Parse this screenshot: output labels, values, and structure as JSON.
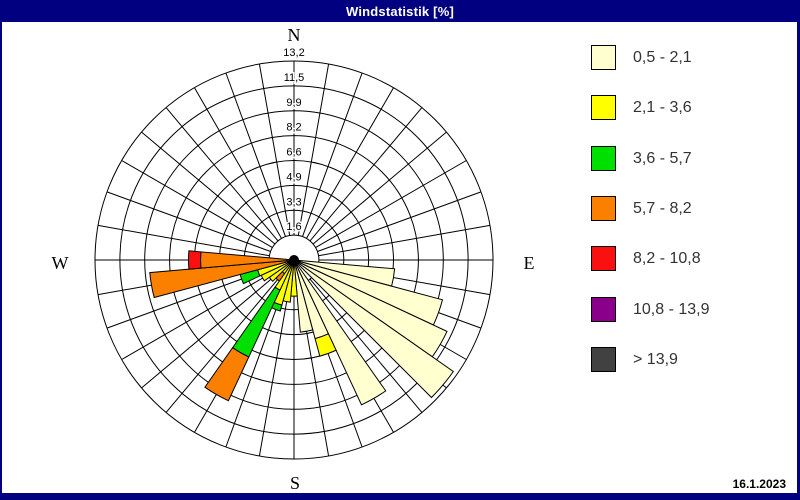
{
  "titlebar": {
    "title": "Windstatistik [%]"
  },
  "compass": {
    "north": "N",
    "east": "E",
    "south": "S",
    "west": "W"
  },
  "footer": {
    "date": "16.1.2023"
  },
  "colors": {
    "frame": "#000080",
    "title_text": "#FFFFFF",
    "grid": "#000000",
    "background": "#FFFFFF"
  },
  "chart_data": {
    "type": "windrose-polar-stacked-bar",
    "title": "Windstatistik [%]",
    "units": "%",
    "grid": {
      "spoke_step_deg": 10,
      "ring_count": 8,
      "ring_step_percent": 1.65,
      "max_percent": 13.2,
      "ring_labels_inner_to_outer": [
        "1,6",
        "3,3",
        "4,9",
        "6,6",
        "8,2",
        "9,9",
        "11,5",
        "13,2"
      ]
    },
    "sector_width_deg": 10,
    "speed_classes": [
      {
        "id": "c1",
        "label": "0,5 - 2,1",
        "color": "#FFFFD0"
      },
      {
        "id": "c2",
        "label": "2,1 - 3,6",
        "color": "#FFFF00"
      },
      {
        "id": "c3",
        "label": "3,6 - 5,7",
        "color": "#00E000"
      },
      {
        "id": "c4",
        "label": "5,7 - 8,2",
        "color": "#FB8000"
      },
      {
        "id": "c5",
        "label": "8,2 - 10,8",
        "color": "#FA1010"
      },
      {
        "id": "c6",
        "label": "10,8 - 13,9",
        "color": "#8B008B"
      },
      {
        "id": "c7",
        "label": "> 13,9",
        "color": "#414141"
      }
    ],
    "directions": [
      {
        "bearing_deg": 100,
        "segments": [
          {
            "class": "c1",
            "from": 0,
            "to": 6.7
          }
        ]
      },
      {
        "bearing_deg": 110,
        "segments": [
          {
            "class": "c1",
            "from": 0,
            "to": 10.2
          }
        ]
      },
      {
        "bearing_deg": 120,
        "segments": [
          {
            "class": "c1",
            "from": 0,
            "to": 11.2
          }
        ]
      },
      {
        "bearing_deg": 130,
        "segments": [
          {
            "class": "c1",
            "from": 0,
            "to": 12.9
          }
        ]
      },
      {
        "bearing_deg": 150,
        "segments": [
          {
            "class": "c1",
            "from": 0,
            "to": 10.6
          }
        ]
      },
      {
        "bearing_deg": 160,
        "segments": [
          {
            "class": "c1",
            "from": 0,
            "to": 5.4
          },
          {
            "class": "c2",
            "from": 5.4,
            "to": 6.6
          }
        ]
      },
      {
        "bearing_deg": 170,
        "segments": [
          {
            "class": "c1",
            "from": 0,
            "to": 4.8
          }
        ]
      },
      {
        "bearing_deg": 180,
        "segments": [
          {
            "class": "c2",
            "from": 0,
            "to": 2.4
          }
        ]
      },
      {
        "bearing_deg": 190,
        "segments": [
          {
            "class": "c2",
            "from": 0,
            "to": 2.8
          }
        ]
      },
      {
        "bearing_deg": 200,
        "segments": [
          {
            "class": "c2",
            "from": 0,
            "to": 3.1
          },
          {
            "class": "c3",
            "from": 3.1,
            "to": 3.5
          }
        ]
      },
      {
        "bearing_deg": 210,
        "segments": [
          {
            "class": "c2",
            "from": 0,
            "to": 2.2
          },
          {
            "class": "c3",
            "from": 2.2,
            "to": 7.1
          },
          {
            "class": "c4",
            "from": 7.1,
            "to": 10.3
          }
        ]
      },
      {
        "bearing_deg": 220,
        "segments": [
          {
            "class": "c2",
            "from": 0,
            "to": 1.1
          },
          {
            "class": "c4",
            "from": 1.1,
            "to": 1.7
          }
        ]
      },
      {
        "bearing_deg": 230,
        "segments": [
          {
            "class": "c2",
            "from": 0,
            "to": 2.0
          }
        ]
      },
      {
        "bearing_deg": 240,
        "segments": [
          {
            "class": "c2",
            "from": 0,
            "to": 2.4
          }
        ]
      },
      {
        "bearing_deg": 250,
        "segments": [
          {
            "class": "c2",
            "from": 0,
            "to": 2.5
          },
          {
            "class": "c3",
            "from": 2.5,
            "to": 3.7
          }
        ]
      },
      {
        "bearing_deg": 260,
        "segments": [
          {
            "class": "c4",
            "from": 0,
            "to": 9.6
          }
        ]
      },
      {
        "bearing_deg": 270,
        "segments": [
          {
            "class": "c4",
            "from": 0,
            "to": 6.2
          },
          {
            "class": "c5",
            "from": 6.2,
            "to": 7.0
          }
        ]
      }
    ],
    "legend_position": "right"
  }
}
